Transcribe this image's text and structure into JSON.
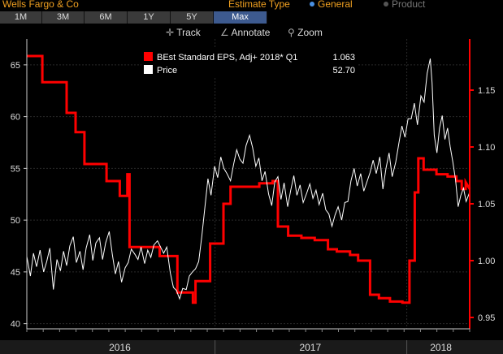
{
  "header": {
    "title": "Wells Fargo & Co",
    "estimate_label": "Estimate Type",
    "options": [
      {
        "label": "General",
        "selected": true
      },
      {
        "label": "Product",
        "selected": false
      }
    ]
  },
  "range_tabs": [
    {
      "label": "1M",
      "active": false
    },
    {
      "label": "3M",
      "active": false
    },
    {
      "label": "6M",
      "active": false
    },
    {
      "label": "1Y",
      "active": false
    },
    {
      "label": "5Y",
      "active": false
    },
    {
      "label": "Max",
      "active": true
    }
  ],
  "tools": [
    {
      "icon": "crosshair-icon",
      "label": "Track"
    },
    {
      "icon": "pencil-icon",
      "label": "Annotate"
    },
    {
      "icon": "magnifier-icon",
      "label": "Zoom"
    }
  ],
  "colors": {
    "eps": "#ff0000",
    "price": "#ffffff",
    "accent": "#f0a020",
    "tab_active": "#3d5a8f",
    "selected_radio": "#4a90e2"
  },
  "chart_data": {
    "type": "line",
    "x_axis": {
      "labels": [
        "2016",
        "2017",
        "2018"
      ]
    },
    "y_left": {
      "range": [
        39.5,
        67.5
      ],
      "ticks": [
        "40",
        "45",
        "50",
        "55",
        "60",
        "65"
      ]
    },
    "y_right": {
      "range": [
        0.94,
        1.195
      ],
      "ticks": [
        "0.95",
        "1.00",
        "1.05",
        "1.10",
        "1.15"
      ]
    },
    "grid": true,
    "legend": {
      "placement": "top-center",
      "items": [
        {
          "name": "BEst Standard EPS, Adj+ 2018* Q1",
          "value": "1.063",
          "color": "#ff0000"
        },
        {
          "name": "Price",
          "value": "52.70",
          "color": "#ffffff"
        }
      ]
    },
    "series": [
      {
        "name": "BEst Standard EPS, Adj+ 2018* Q1",
        "axis": "right",
        "t": [
          0.0,
          0.004,
          0.008,
          0.012,
          0.017,
          0.021,
          0.025,
          0.029,
          0.033,
          0.037,
          0.042,
          0.046,
          0.05,
          0.054,
          0.058,
          0.062,
          0.067,
          0.071,
          0.075,
          0.079,
          0.083,
          0.087,
          0.092,
          0.096,
          0.1,
          0.104,
          0.108,
          0.112,
          0.117,
          0.121,
          0.125,
          0.129,
          0.133,
          0.137,
          0.142,
          0.146,
          0.15,
          0.154,
          0.158,
          0.162,
          0.167,
          0.171,
          0.175,
          0.179,
          0.183,
          0.187,
          0.192,
          0.196,
          0.2,
          0.204,
          0.208,
          0.212,
          0.217,
          0.221,
          0.225,
          0.229,
          0.233,
          0.237,
          0.242,
          0.246,
          0.25,
          0.254,
          0.258,
          0.262,
          0.267,
          0.271,
          0.275,
          0.279,
          0.283,
          0.287,
          0.292,
          0.296,
          0.3,
          0.304,
          0.308,
          0.312,
          0.317,
          0.321,
          0.325,
          0.329,
          0.333,
          0.337,
          0.342,
          0.346,
          0.35,
          0.354,
          0.358,
          0.362,
          0.367,
          0.371,
          0.375,
          0.379,
          0.383,
          0.387,
          0.392,
          0.396,
          0.4,
          0.404,
          0.408,
          0.412,
          0.417,
          0.421,
          0.425,
          0.429,
          0.433,
          0.437,
          0.442,
          0.446,
          0.45,
          0.454,
          0.458,
          0.462,
          0.467,
          0.471,
          0.475,
          0.479,
          0.483,
          0.487,
          0.492,
          0.496,
          0.5,
          0.504,
          0.508,
          0.512,
          0.517,
          0.521,
          0.525,
          0.529,
          0.533,
          0.537,
          0.542,
          0.546,
          0.55,
          0.554,
          0.558,
          0.562,
          0.567,
          0.571,
          0.575,
          0.579,
          0.583,
          0.587,
          0.592,
          0.596,
          0.6,
          0.604,
          0.608,
          0.612,
          0.617,
          0.621,
          0.625,
          0.629,
          0.633,
          0.637,
          0.642,
          0.646,
          0.65,
          0.654,
          0.658,
          0.662,
          0.667,
          0.671,
          0.675,
          0.679,
          0.683,
          0.687,
          0.692,
          0.696,
          0.7,
          0.704,
          0.708,
          0.712,
          0.717,
          0.721,
          0.725,
          0.729,
          0.733,
          0.737,
          0.742,
          0.746,
          0.75,
          0.754,
          0.758,
          0.762,
          0.767,
          0.771,
          0.775,
          0.779,
          0.783,
          0.787,
          0.792,
          0.796,
          0.8,
          0.804,
          0.808,
          0.812,
          0.817,
          0.821,
          0.825,
          0.829,
          0.833,
          0.837,
          0.842,
          0.846,
          0.85,
          0.854,
          0.858,
          0.862,
          0.867,
          0.871,
          0.875,
          0.879,
          0.883,
          0.887,
          0.892,
          0.896,
          0.9,
          0.904,
          0.908,
          0.912,
          0.917,
          0.921,
          0.925,
          0.929,
          0.933,
          0.937,
          0.942,
          0.946,
          0.95,
          0.954,
          0.958,
          0.962,
          0.967,
          0.971,
          0.975,
          0.979,
          0.983,
          0.987,
          0.992,
          0.996,
          1.0
        ],
        "values": []
      },
      {
        "name": "Price",
        "axis": "left",
        "values": []
      }
    ],
    "eps_steps": [
      [
        0.0,
        1.18
      ],
      [
        0.035,
        1.18
      ],
      [
        0.035,
        1.157
      ],
      [
        0.09,
        1.157
      ],
      [
        0.09,
        1.13
      ],
      [
        0.11,
        1.13
      ],
      [
        0.11,
        1.113
      ],
      [
        0.13,
        1.113
      ],
      [
        0.13,
        1.085
      ],
      [
        0.18,
        1.085
      ],
      [
        0.18,
        1.07
      ],
      [
        0.21,
        1.07
      ],
      [
        0.21,
        1.057
      ],
      [
        0.227,
        1.057
      ],
      [
        0.227,
        1.076
      ],
      [
        0.232,
        1.076
      ],
      [
        0.232,
        1.012
      ],
      [
        0.3,
        1.012
      ],
      [
        0.3,
        1.004
      ],
      [
        0.34,
        1.004
      ],
      [
        0.34,
        0.972
      ],
      [
        0.375,
        0.972
      ],
      [
        0.375,
        0.963
      ],
      [
        0.381,
        0.963
      ],
      [
        0.381,
        0.982
      ],
      [
        0.414,
        0.982
      ],
      [
        0.414,
        1.015
      ],
      [
        0.444,
        1.015
      ],
      [
        0.444,
        1.05
      ],
      [
        0.46,
        1.05
      ],
      [
        0.46,
        1.065
      ],
      [
        0.525,
        1.065
      ],
      [
        0.525,
        1.068
      ],
      [
        0.555,
        1.068
      ],
      [
        0.555,
        1.07
      ],
      [
        0.567,
        1.07
      ],
      [
        0.567,
        1.03
      ],
      [
        0.59,
        1.03
      ],
      [
        0.59,
        1.022
      ],
      [
        0.62,
        1.022
      ],
      [
        0.62,
        1.02
      ],
      [
        0.65,
        1.02
      ],
      [
        0.65,
        1.018
      ],
      [
        0.68,
        1.018
      ],
      [
        0.68,
        1.01
      ],
      [
        0.7,
        1.01
      ],
      [
        0.7,
        1.008
      ],
      [
        0.73,
        1.008
      ],
      [
        0.73,
        1.005
      ],
      [
        0.748,
        1.005
      ],
      [
        0.748,
        1.0
      ],
      [
        0.775,
        1.0
      ],
      [
        0.775,
        0.97
      ],
      [
        0.795,
        0.97
      ],
      [
        0.795,
        0.967
      ],
      [
        0.82,
        0.967
      ],
      [
        0.82,
        0.964
      ],
      [
        0.848,
        0.964
      ],
      [
        0.848,
        0.963
      ],
      [
        0.864,
        0.963
      ],
      [
        0.864,
        1.0
      ],
      [
        0.876,
        1.0
      ],
      [
        0.876,
        1.06
      ],
      [
        0.884,
        1.06
      ],
      [
        0.884,
        1.09
      ],
      [
        0.896,
        1.09
      ],
      [
        0.896,
        1.08
      ],
      [
        0.925,
        1.08
      ],
      [
        0.925,
        1.076
      ],
      [
        0.95,
        1.076
      ],
      [
        0.95,
        1.074
      ],
      [
        0.97,
        1.074
      ],
      [
        0.97,
        1.07
      ],
      [
        0.982,
        1.07
      ],
      [
        0.982,
        1.063
      ],
      [
        0.991,
        1.063
      ],
      [
        0.991,
        1.069
      ],
      [
        1.0,
        1.063
      ]
    ],
    "price_points": [
      [
        0.0,
        46.5
      ],
      [
        0.008,
        44.6
      ],
      [
        0.015,
        46.8
      ],
      [
        0.022,
        45.5
      ],
      [
        0.03,
        47.1
      ],
      [
        0.038,
        45.0
      ],
      [
        0.045,
        46.0
      ],
      [
        0.052,
        47.3
      ],
      [
        0.06,
        43.3
      ],
      [
        0.068,
        46.2
      ],
      [
        0.076,
        45.1
      ],
      [
        0.083,
        47.0
      ],
      [
        0.09,
        45.6
      ],
      [
        0.097,
        47.5
      ],
      [
        0.105,
        48.4
      ],
      [
        0.112,
        45.9
      ],
      [
        0.12,
        47.0
      ],
      [
        0.127,
        45.2
      ],
      [
        0.134,
        47.3
      ],
      [
        0.142,
        48.6
      ],
      [
        0.149,
        46.1
      ],
      [
        0.156,
        47.8
      ],
      [
        0.164,
        48.3
      ],
      [
        0.171,
        46.2
      ],
      [
        0.178,
        47.8
      ],
      [
        0.186,
        48.9
      ],
      [
        0.193,
        46.7
      ],
      [
        0.2,
        44.8
      ],
      [
        0.207,
        46.0
      ],
      [
        0.214,
        44.0
      ],
      [
        0.222,
        45.4
      ],
      [
        0.229,
        45.9
      ],
      [
        0.236,
        47.2
      ],
      [
        0.244,
        46.7
      ],
      [
        0.251,
        46.2
      ],
      [
        0.258,
        47.4
      ],
      [
        0.266,
        45.8
      ],
      [
        0.273,
        47.1
      ],
      [
        0.28,
        46.4
      ],
      [
        0.287,
        47.6
      ],
      [
        0.295,
        48.0
      ],
      [
        0.302,
        47.4
      ],
      [
        0.309,
        46.8
      ],
      [
        0.316,
        47.4
      ],
      [
        0.324,
        44.9
      ],
      [
        0.331,
        43.5
      ],
      [
        0.338,
        43.2
      ],
      [
        0.345,
        42.4
      ],
      [
        0.352,
        43.4
      ],
      [
        0.36,
        43.3
      ],
      [
        0.367,
        44.6
      ],
      [
        0.374,
        45.0
      ],
      [
        0.381,
        45.3
      ],
      [
        0.388,
        46.0
      ],
      [
        0.395,
        48.4
      ],
      [
        0.402,
        51.2
      ],
      [
        0.409,
        54.0
      ],
      [
        0.416,
        52.4
      ],
      [
        0.424,
        55.2
      ],
      [
        0.431,
        54.1
      ],
      [
        0.438,
        56.1
      ],
      [
        0.445,
        55.0
      ],
      [
        0.452,
        54.5
      ],
      [
        0.46,
        53.8
      ],
      [
        0.467,
        55.4
      ],
      [
        0.474,
        56.8
      ],
      [
        0.481,
        55.9
      ],
      [
        0.488,
        55.5
      ],
      [
        0.495,
        57.2
      ],
      [
        0.503,
        58.2
      ],
      [
        0.51,
        57.0
      ],
      [
        0.517,
        55.2
      ],
      [
        0.524,
        56.0
      ],
      [
        0.531,
        53.8
      ],
      [
        0.538,
        54.7
      ],
      [
        0.546,
        52.5
      ],
      [
        0.553,
        51.4
      ],
      [
        0.56,
        53.7
      ],
      [
        0.567,
        54.2
      ],
      [
        0.574,
        52.0
      ],
      [
        0.581,
        53.6
      ],
      [
        0.589,
        51.3
      ],
      [
        0.596,
        52.9
      ],
      [
        0.603,
        54.3
      ],
      [
        0.61,
        52.4
      ],
      [
        0.617,
        53.4
      ],
      [
        0.624,
        51.7
      ],
      [
        0.632,
        52.6
      ],
      [
        0.639,
        53.5
      ],
      [
        0.646,
        52.1
      ],
      [
        0.653,
        52.9
      ],
      [
        0.66,
        51.5
      ],
      [
        0.668,
        52.6
      ],
      [
        0.675,
        51.0
      ],
      [
        0.682,
        50.6
      ],
      [
        0.689,
        49.4
      ],
      [
        0.696,
        50.5
      ],
      [
        0.703,
        51.3
      ],
      [
        0.711,
        50.0
      ],
      [
        0.718,
        51.7
      ],
      [
        0.725,
        51.8
      ],
      [
        0.732,
        53.8
      ],
      [
        0.739,
        55.0
      ],
      [
        0.746,
        53.3
      ],
      [
        0.754,
        54.5
      ],
      [
        0.761,
        52.8
      ],
      [
        0.768,
        53.7
      ],
      [
        0.775,
        54.6
      ],
      [
        0.782,
        55.8
      ],
      [
        0.789,
        54.5
      ],
      [
        0.797,
        56.1
      ],
      [
        0.804,
        53.0
      ],
      [
        0.811,
        55.0
      ],
      [
        0.818,
        56.5
      ],
      [
        0.825,
        54.2
      ],
      [
        0.833,
        55.6
      ],
      [
        0.84,
        57.4
      ],
      [
        0.847,
        59.1
      ],
      [
        0.854,
        58.0
      ],
      [
        0.861,
        59.8
      ],
      [
        0.868,
        59.8
      ],
      [
        0.875,
        61.3
      ],
      [
        0.882,
        59.2
      ],
      [
        0.89,
        62.0
      ],
      [
        0.897,
        61.4
      ],
      [
        0.904,
        64.2
      ],
      [
        0.911,
        65.6
      ],
      [
        0.915,
        63.3
      ],
      [
        0.92,
        58.2
      ],
      [
        0.926,
        56.5
      ],
      [
        0.932,
        58.9
      ],
      [
        0.938,
        60.1
      ],
      [
        0.944,
        57.8
      ],
      [
        0.95,
        58.9
      ],
      [
        0.956,
        57.1
      ],
      [
        0.962,
        55.6
      ],
      [
        0.968,
        53.9
      ],
      [
        0.974,
        51.3
      ],
      [
        0.98,
        52.4
      ],
      [
        0.986,
        53.1
      ],
      [
        0.992,
        51.8
      ],
      [
        1.0,
        52.7
      ]
    ]
  }
}
